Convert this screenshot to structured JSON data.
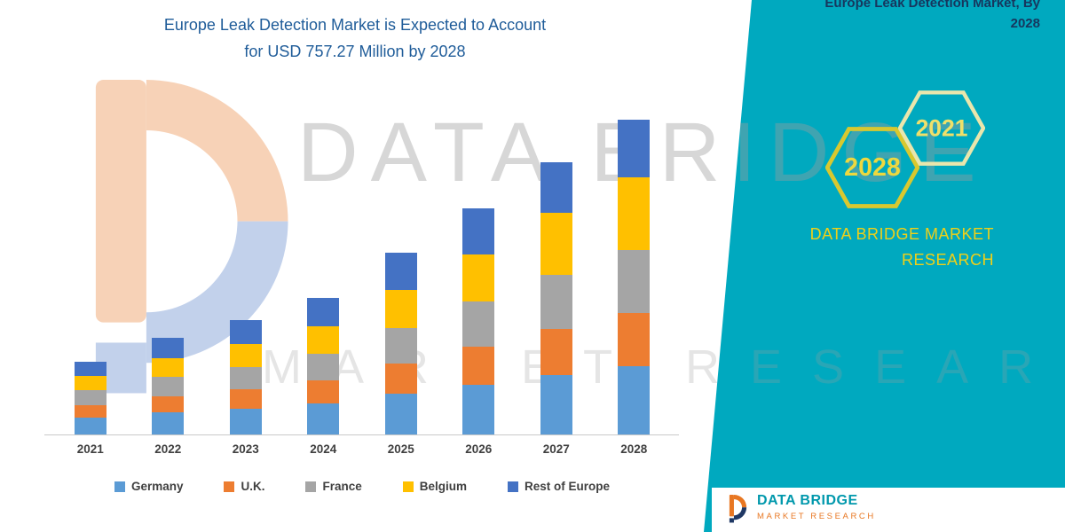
{
  "header": {
    "title_line1": "Europe Leak Detection Market is Expected to Account",
    "title_line2": "for USD 757.27 Million by 2028"
  },
  "side_panel": {
    "accent_color": "#00A9BF",
    "title_line1": "Europe Leak Detection Market, By",
    "title_line2": "2028",
    "hexagons": [
      {
        "label": "2028",
        "stroke": "#D8C82F",
        "text_color": "#EDD83F"
      },
      {
        "label": "2021",
        "stroke": "#EAE6AC",
        "text_color": "#EFE06A"
      }
    ],
    "brand_line1": "DATA BRIDGE MARKET",
    "brand_line2": "RESEARCH",
    "brand_color": "#EFD018"
  },
  "watermark": {
    "line1": "DATA BRIDGE",
    "line2": "MARKET RESEARCH"
  },
  "footer_logo": {
    "name": "DATA BRIDGE",
    "sub": "MARKET RESEARCH"
  },
  "chart_data": {
    "type": "bar",
    "stacked": true,
    "title": "Europe Leak Detection Market is Expected to Account for USD 757.27 Million by 2028",
    "unit": "USD Million",
    "categories": [
      "2021",
      "2022",
      "2023",
      "2024",
      "2025",
      "2026",
      "2027",
      "2028"
    ],
    "series": [
      {
        "name": "Germany",
        "color": "#5B9BD5",
        "values": [
          40,
          54,
          62,
          74,
          98,
          120,
          142,
          165
        ]
      },
      {
        "name": "U.K.",
        "color": "#ED7D31",
        "values": [
          30,
          38,
          46,
          56,
          73,
          92,
          112,
          128
        ]
      },
      {
        "name": "France",
        "color": "#A5A5A5",
        "values": [
          36,
          46,
          54,
          64,
          86,
          108,
          130,
          150
        ]
      },
      {
        "name": "Belgium",
        "color": "#FFC000",
        "values": [
          34,
          46,
          55,
          66,
          90,
          113,
          150,
          175
        ]
      },
      {
        "name": "Rest of Europe",
        "color": "#4472C4",
        "values": [
          35,
          49,
          58,
          68,
          90,
          110,
          120,
          139.27
        ]
      }
    ],
    "xlabel": "",
    "ylabel": "",
    "ylim": [
      0,
      800
    ],
    "grid": false,
    "legend_position": "bottom"
  }
}
